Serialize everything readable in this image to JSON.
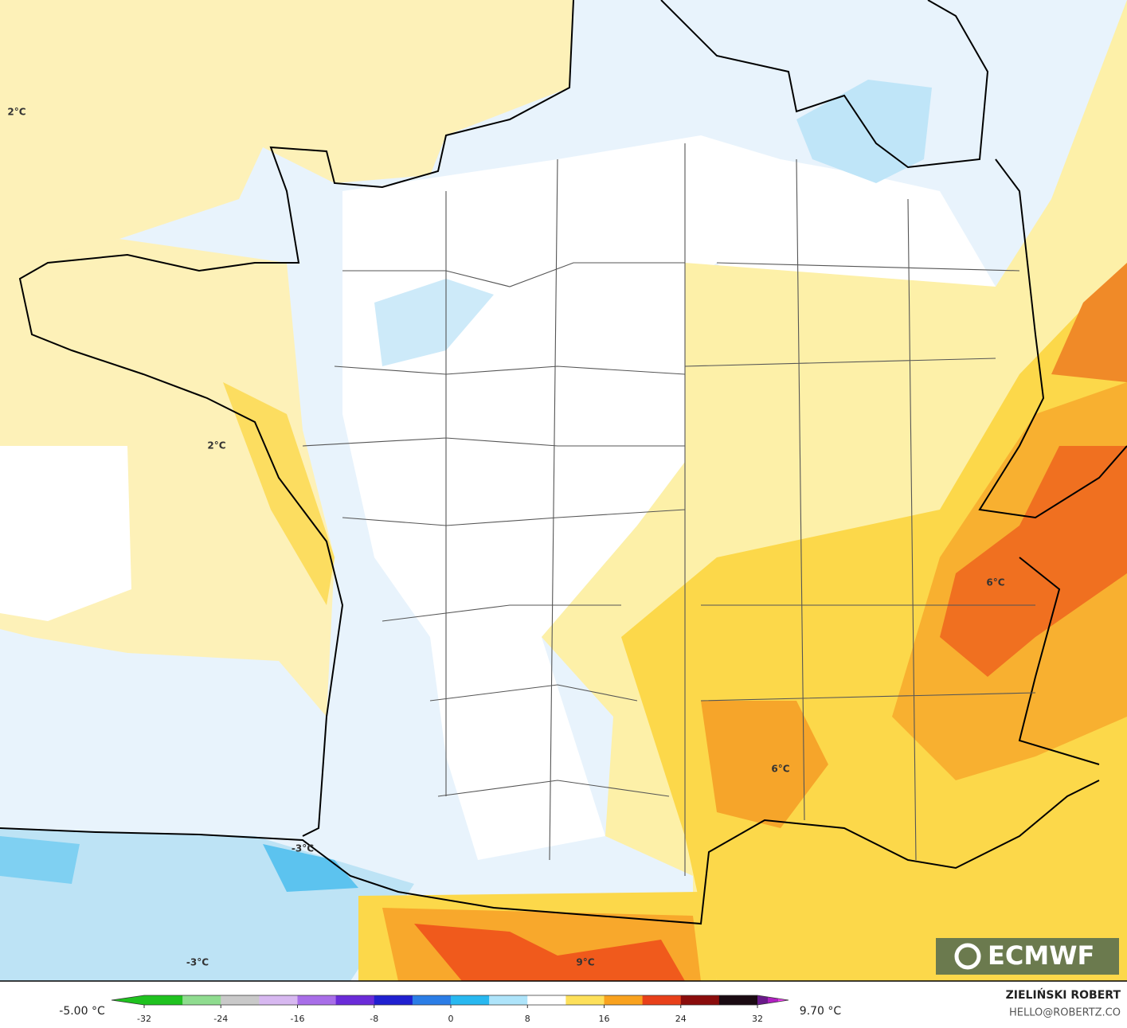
{
  "map": {
    "labels": [
      "2°C",
      "2°C",
      "6°C",
      "6°C",
      "-3°C",
      "-3°C",
      "9°C"
    ]
  },
  "colorbar": {
    "min_label": "-5.00 °C",
    "max_label": "9.70 °C",
    "ticks": [
      -32,
      -24,
      -16,
      -8,
      0,
      8,
      16,
      24,
      32
    ],
    "range": [
      -32,
      32
    ],
    "colors": [
      "#1fc21f",
      "#8fdc8f",
      "#c9c9c9",
      "#d7b8f0",
      "#a86ee8",
      "#6a2bd8",
      "#2020d0",
      "#2b7de6",
      "#28b8f0",
      "#aee4fa",
      "#ffffff",
      "#fde05a",
      "#f9a21e",
      "#e8401a",
      "#8a0c0c",
      "#1a0a12"
    ],
    "colors_over": [
      "#6a1a8a",
      "#b020c0",
      "#f040f0"
    ]
  },
  "credits": {
    "author": "ZIELIŃSKI ROBERT",
    "contact": "HELLO@ROBERTZ.CO",
    "logo": "ECMWF"
  }
}
